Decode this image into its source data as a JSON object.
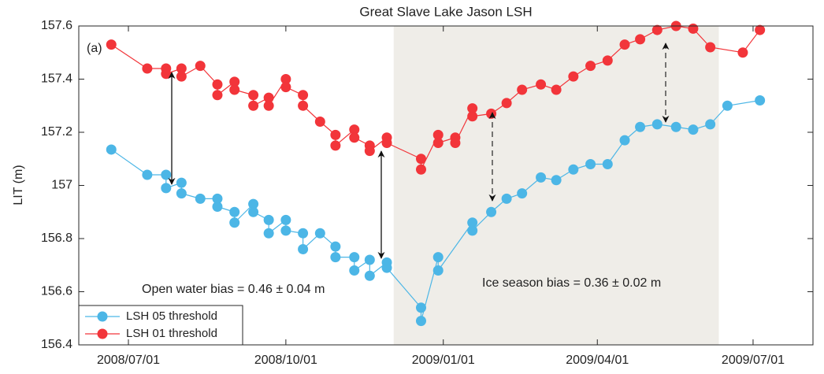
{
  "chart_data": {
    "type": "line",
    "title": "Great Slave Lake Jason LSH",
    "ylabel": "LIT (m)",
    "panel_label": "(a)",
    "annotations": [
      "Open water bias = 0.46 ± 0.04 m",
      "Ice season bias = 0.36 ± 0.02 m"
    ],
    "xlim": [
      "2008/06/02",
      "2009/08/05"
    ],
    "xticks": [
      "2008/07/01",
      "2008/10/01",
      "2009/01/01",
      "2009/04/01",
      "2009/07/01"
    ],
    "ylim": [
      156.4,
      157.6
    ],
    "yticks": [
      156.4,
      156.6,
      156.8,
      157,
      157.2,
      157.4,
      157.6
    ],
    "shaded_range": [
      "2008/12/03",
      "2009/06/11"
    ],
    "shade_color": "#efede8",
    "legend": "lower left",
    "series": [
      {
        "name": "LSH 05 threshold",
        "color": "#4cb6e6",
        "x": [
          "2008/06/21",
          "2008/07/12",
          "2008/07/23",
          "2008/07/23",
          "2008/08/01",
          "2008/08/01",
          "2008/08/12",
          "2008/08/22",
          "2008/08/22",
          "2008/09/01",
          "2008/09/01",
          "2008/09/12",
          "2008/09/12",
          "2008/09/21",
          "2008/09/21",
          "2008/10/01",
          "2008/10/01",
          "2008/10/11",
          "2008/10/11",
          "2008/10/21",
          "2008/10/30",
          "2008/10/30",
          "2008/11/10",
          "2008/11/10",
          "2008/11/19",
          "2008/11/19",
          "2008/11/29",
          "2008/11/29",
          "2008/12/19",
          "2008/12/19",
          "2008/12/29",
          "2008/12/29",
          "2009/01/18",
          "2009/01/18",
          "2009/01/29",
          "2009/02/07",
          "2009/02/16",
          "2009/02/27",
          "2009/03/08",
          "2009/03/18",
          "2009/03/28",
          "2009/04/07",
          "2009/04/17",
          "2009/04/26",
          "2009/05/06",
          "2009/05/17",
          "2009/05/27",
          "2009/06/06",
          "2009/06/16",
          "2009/07/05"
        ],
        "values": [
          157.135,
          157.04,
          157.04,
          156.99,
          157.01,
          156.97,
          156.95,
          156.95,
          156.92,
          156.9,
          156.86,
          156.93,
          156.9,
          156.87,
          156.82,
          156.87,
          156.83,
          156.82,
          156.76,
          156.82,
          156.77,
          156.73,
          156.73,
          156.68,
          156.72,
          156.66,
          156.71,
          156.69,
          156.54,
          156.49,
          156.73,
          156.68,
          156.86,
          156.83,
          156.9,
          156.95,
          156.97,
          157.03,
          157.02,
          157.06,
          157.08,
          157.08,
          157.17,
          157.22,
          157.23,
          157.22,
          157.21,
          157.23,
          157.3,
          157.32
        ]
      },
      {
        "name": "LSH 01 threshold",
        "color": "#f2353a",
        "x": [
          "2008/06/21",
          "2008/07/12",
          "2008/07/23",
          "2008/07/23",
          "2008/08/01",
          "2008/08/01",
          "2008/08/12",
          "2008/08/22",
          "2008/08/22",
          "2008/09/01",
          "2008/09/01",
          "2008/09/12",
          "2008/09/12",
          "2008/09/21",
          "2008/09/21",
          "2008/10/01",
          "2008/10/01",
          "2008/10/11",
          "2008/10/11",
          "2008/10/21",
          "2008/10/30",
          "2008/10/30",
          "2008/11/10",
          "2008/11/10",
          "2008/11/19",
          "2008/11/19",
          "2008/11/29",
          "2008/11/29",
          "2008/12/19",
          "2008/12/19",
          "2008/12/29",
          "2008/12/29",
          "2009/01/08",
          "2009/01/08",
          "2009/01/18",
          "2009/01/18",
          "2009/01/29",
          "2009/02/07",
          "2009/02/16",
          "2009/02/27",
          "2009/03/08",
          "2009/03/18",
          "2009/03/28",
          "2009/04/07",
          "2009/04/17",
          "2009/04/26",
          "2009/05/06",
          "2009/05/17",
          "2009/05/27",
          "2009/06/06",
          "2009/06/25",
          "2009/07/05"
        ],
        "values": [
          157.53,
          157.44,
          157.44,
          157.42,
          157.44,
          157.41,
          157.45,
          157.38,
          157.34,
          157.39,
          157.36,
          157.34,
          157.3,
          157.33,
          157.3,
          157.4,
          157.37,
          157.34,
          157.3,
          157.24,
          157.19,
          157.15,
          157.21,
          157.18,
          157.15,
          157.13,
          157.18,
          157.16,
          157.1,
          157.06,
          157.19,
          157.16,
          157.18,
          157.16,
          157.29,
          157.26,
          157.27,
          157.31,
          157.36,
          157.38,
          157.36,
          157.41,
          157.45,
          157.47,
          157.53,
          157.55,
          157.585,
          157.6,
          157.59,
          157.52,
          157.5,
          157.585
        ]
      }
    ]
  }
}
